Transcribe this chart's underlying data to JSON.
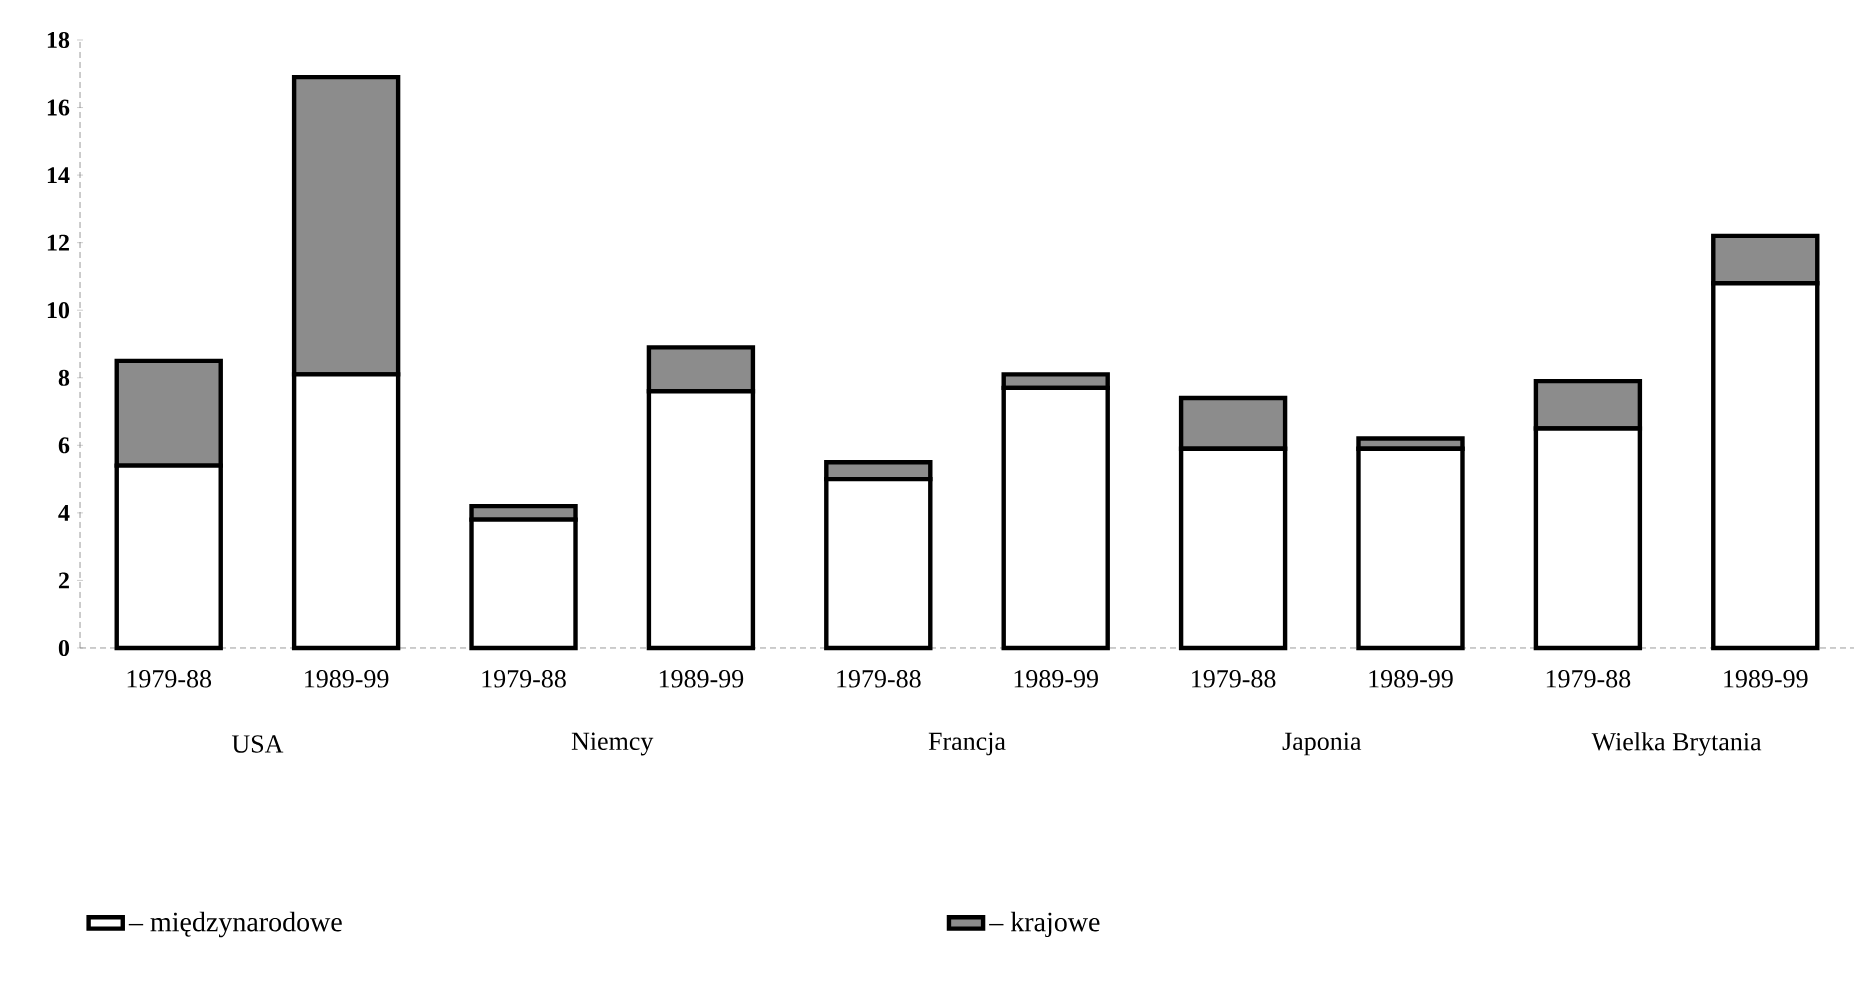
{
  "chart_data": {
    "type": "bar",
    "stacked": true,
    "categories": [
      "1979-88",
      "1989-99",
      "1979-88",
      "1989-99",
      "1979-88",
      "1989-99",
      "1979-88",
      "1989-99",
      "1979-88",
      "1989-99"
    ],
    "series": [
      {
        "name": "– międzynarodowe",
        "color": "#ffffff",
        "values": [
          5.4,
          8.1,
          3.8,
          7.6,
          5.0,
          7.7,
          5.9,
          5.9,
          6.5,
          10.8
        ]
      },
      {
        "name": "– krajowe",
        "color": "#8c8c8c",
        "values": [
          3.1,
          8.8,
          0.4,
          1.3,
          0.5,
          0.4,
          1.5,
          0.3,
          1.4,
          1.4
        ]
      }
    ],
    "annotations": [
      "USA",
      "Niemcy",
      "Francja",
      "Japonia",
      "Wielka Brytania"
    ],
    "ylim": [
      0,
      18
    ],
    "yticks": [
      0,
      2,
      4,
      6,
      8,
      10,
      12,
      14,
      16,
      18
    ],
    "grid": false,
    "legend": "bottom"
  }
}
